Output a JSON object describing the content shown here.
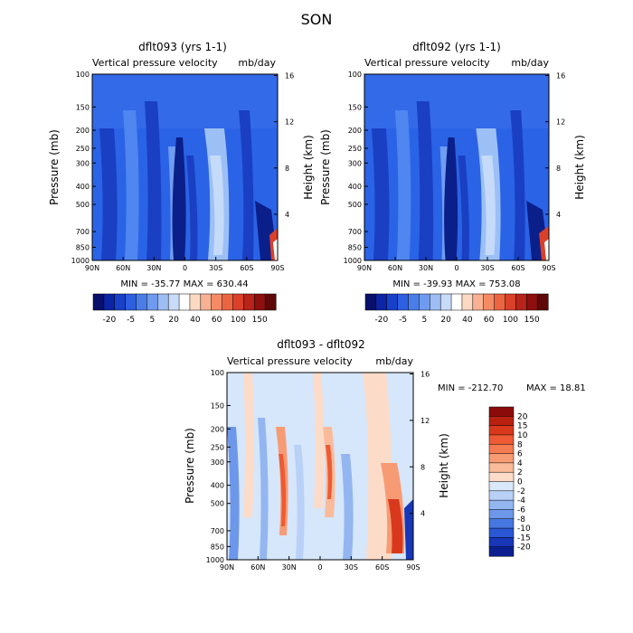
{
  "page": {
    "title": "SON"
  },
  "colors": {
    "panel_blue": "#2a63e6",
    "dark_blue": "#0a1f9a",
    "light_blue": "#a9c8f5",
    "pale": "#dbe8fa",
    "diff_bg": "#d6e6fb",
    "orange": "#f3a27a",
    "red": "#c23b22"
  },
  "chart_data": [
    {
      "type": "heatmap",
      "title": "dflt093 (yrs 1-1)",
      "subtitle_left": "Vertical pressure velocity",
      "subtitle_right": "mb/day",
      "ylabel": "Pressure (mb)",
      "y2label": "Height (km)",
      "x_ticks": [
        "90N",
        "60N",
        "30N",
        "0",
        "30S",
        "60S",
        "90S"
      ],
      "y_ticks": [
        "100",
        "150",
        "200",
        "250",
        "300",
        "400",
        "500",
        "700",
        "850",
        "1000"
      ],
      "y2_ticks": [
        "16",
        "12",
        "8",
        "4"
      ],
      "stats": "MIN = -35.77   MAX = 630.44",
      "colorbar_labels": [
        "-20",
        "-5",
        "5",
        "20",
        "40",
        "60",
        "100",
        "150"
      ],
      "colorbar_colors": [
        "#08106b",
        "#0b25a6",
        "#1840c8",
        "#2d5fe0",
        "#4a7de8",
        "#6f9bee",
        "#9dbdf4",
        "#c8dcf8",
        "#ffffff",
        "#fdd9c4",
        "#f8b192",
        "#f48b65",
        "#ec6543",
        "#d9412a",
        "#b8231a",
        "#8f0f0f",
        "#5e0808"
      ]
    },
    {
      "type": "heatmap",
      "title": "dflt092 (yrs 1-1)",
      "subtitle_left": "Vertical pressure velocity",
      "subtitle_right": "mb/day",
      "ylabel": "Pressure (mb)",
      "y2label": "Height (km)",
      "x_ticks": [
        "90N",
        "60N",
        "30N",
        "0",
        "30S",
        "60S",
        "90S"
      ],
      "y_ticks": [
        "100",
        "150",
        "200",
        "250",
        "300",
        "400",
        "500",
        "700",
        "850",
        "1000"
      ],
      "y2_ticks": [
        "16",
        "12",
        "8",
        "4"
      ],
      "stats": "MIN = -39.93   MAX = 753.08",
      "colorbar_labels": [
        "-20",
        "-5",
        "5",
        "20",
        "40",
        "60",
        "100",
        "150"
      ],
      "colorbar_colors": [
        "#08106b",
        "#0b25a6",
        "#1840c8",
        "#2d5fe0",
        "#4a7de8",
        "#6f9bee",
        "#9dbdf4",
        "#c8dcf8",
        "#ffffff",
        "#fdd9c4",
        "#f8b192",
        "#f48b65",
        "#ec6543",
        "#d9412a",
        "#b8231a",
        "#8f0f0f",
        "#5e0808"
      ]
    },
    {
      "type": "heatmap",
      "title": "dflt093 - dflt092",
      "subtitle_left": "Vertical pressure velocity",
      "subtitle_right": "mb/day",
      "ylabel": "Pressure (mb)",
      "y2label": "Height (km)",
      "x_ticks": [
        "90N",
        "60N",
        "30N",
        "0",
        "30S",
        "60S",
        "90S"
      ],
      "y_ticks": [
        "100",
        "150",
        "200",
        "250",
        "300",
        "400",
        "500",
        "700",
        "850",
        "1000"
      ],
      "y2_ticks": [
        "16",
        "12",
        "8",
        "4"
      ],
      "stats_min": "MIN = -212.70",
      "stats_max": "MAX =  18.81",
      "colorbar_labels": [
        "20",
        "15",
        "10",
        "8",
        "6",
        "4",
        "2",
        "0",
        "-2",
        "-4",
        "-6",
        "-8",
        "-10",
        "-15",
        "-20"
      ],
      "colorbar_colors": [
        "#8b0a0a",
        "#b8200f",
        "#d8391c",
        "#ee5a33",
        "#f47b52",
        "#f79b74",
        "#fabb9a",
        "#fcdcc8",
        "#dae8fb",
        "#b9d1f7",
        "#93b6f1",
        "#6d97ea",
        "#4777e1",
        "#2a57d3",
        "#1737b8",
        "#0a1e8f"
      ]
    }
  ]
}
